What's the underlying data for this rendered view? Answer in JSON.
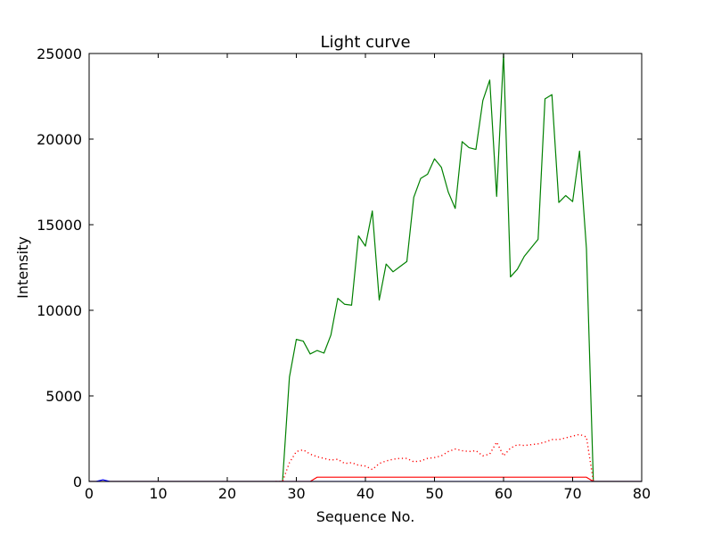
{
  "chart_data": {
    "type": "line",
    "title": "Light curve",
    "xlabel": "Sequence No.",
    "ylabel": "Intensity",
    "xlim": [
      0,
      80
    ],
    "ylim": [
      0,
      25000
    ],
    "x_ticks": [
      0,
      10,
      20,
      30,
      40,
      50,
      60,
      70,
      80
    ],
    "y_ticks": [
      0,
      5000,
      10000,
      15000,
      20000,
      25000
    ],
    "x_tick_labels": [
      "0",
      "10",
      "20",
      "30",
      "40",
      "50",
      "60",
      "70",
      "80"
    ],
    "y_tick_labels": [
      "0",
      "5000",
      "10000",
      "15000",
      "20000",
      "25000"
    ],
    "grid": false,
    "series": [
      {
        "color": "#008000",
        "style": "solid",
        "x": [
          0,
          1,
          2,
          3,
          4,
          5,
          6,
          7,
          8,
          9,
          10,
          11,
          12,
          13,
          14,
          15,
          16,
          17,
          18,
          19,
          20,
          21,
          22,
          23,
          24,
          25,
          26,
          27,
          28,
          29,
          30,
          31,
          32,
          33,
          34,
          35,
          36,
          37,
          38,
          39,
          40,
          41,
          42,
          43,
          44,
          45,
          46,
          47,
          48,
          49,
          50,
          51,
          52,
          53,
          54,
          55,
          56,
          57,
          58,
          59,
          60,
          61,
          62,
          63,
          64,
          65,
          66,
          67,
          68,
          69,
          70,
          71,
          72,
          73,
          74,
          75,
          76,
          77,
          78,
          79,
          80
        ],
        "y": [
          0,
          0,
          0,
          0,
          0,
          0,
          0,
          0,
          0,
          0,
          0,
          0,
          0,
          0,
          0,
          0,
          0,
          0,
          0,
          0,
          0,
          0,
          0,
          0,
          0,
          0,
          0,
          0,
          0,
          6100,
          8300,
          8200,
          7450,
          7650,
          7500,
          8550,
          10700,
          10350,
          10300,
          14350,
          13750,
          15800,
          10600,
          12700,
          12250,
          12550,
          12850,
          16600,
          17700,
          17950,
          18850,
          18350,
          16900,
          15950,
          19850,
          19500,
          19400,
          22250,
          23450,
          16650,
          25000,
          11950,
          12400,
          13150,
          13650,
          14150,
          22350,
          22600,
          16300,
          16700,
          16350,
          19300,
          13600,
          0,
          0,
          0,
          0,
          0,
          0,
          0,
          0
        ]
      },
      {
        "color": "#ff0000",
        "style": "dotted",
        "x": [
          27,
          28,
          29,
          30,
          31,
          32,
          33,
          34,
          35,
          36,
          37,
          38,
          39,
          40,
          41,
          42,
          43,
          44,
          45,
          46,
          47,
          48,
          49,
          50,
          51,
          52,
          53,
          54,
          55,
          56,
          57,
          58,
          59,
          60,
          61,
          62,
          63,
          64,
          65,
          66,
          67,
          68,
          69,
          70,
          71,
          72,
          73
        ],
        "y": [
          0,
          0,
          1100,
          1750,
          1850,
          1600,
          1450,
          1350,
          1250,
          1300,
          1050,
          1100,
          950,
          900,
          700,
          1050,
          1200,
          1300,
          1350,
          1350,
          1150,
          1200,
          1350,
          1400,
          1500,
          1750,
          1900,
          1800,
          1750,
          1800,
          1500,
          1600,
          2300,
          1500,
          1950,
          2150,
          2100,
          2150,
          2200,
          2300,
          2450,
          2450,
          2550,
          2650,
          2750,
          2600,
          0
        ]
      },
      {
        "color": "#ff0000",
        "style": "solid",
        "x": [
          0,
          32,
          33,
          34,
          35,
          36,
          37,
          38,
          39,
          40,
          41,
          42,
          43,
          44,
          45,
          46,
          47,
          48,
          49,
          50,
          51,
          52,
          53,
          54,
          55,
          56,
          57,
          58,
          59,
          60,
          61,
          62,
          63,
          64,
          65,
          66,
          67,
          68,
          69,
          70,
          71,
          72,
          73,
          80
        ],
        "y": [
          0,
          0,
          250,
          250,
          250,
          250,
          250,
          250,
          250,
          250,
          250,
          250,
          250,
          250,
          250,
          250,
          250,
          250,
          250,
          250,
          250,
          250,
          250,
          250,
          250,
          250,
          250,
          250,
          250,
          250,
          250,
          250,
          250,
          250,
          250,
          250,
          250,
          250,
          250,
          250,
          250,
          250,
          0,
          0
        ]
      },
      {
        "color": "#0000ff",
        "style": "solid",
        "x": [
          0,
          1,
          2,
          3,
          80
        ],
        "y": [
          0,
          0,
          100,
          0,
          0
        ]
      }
    ]
  }
}
